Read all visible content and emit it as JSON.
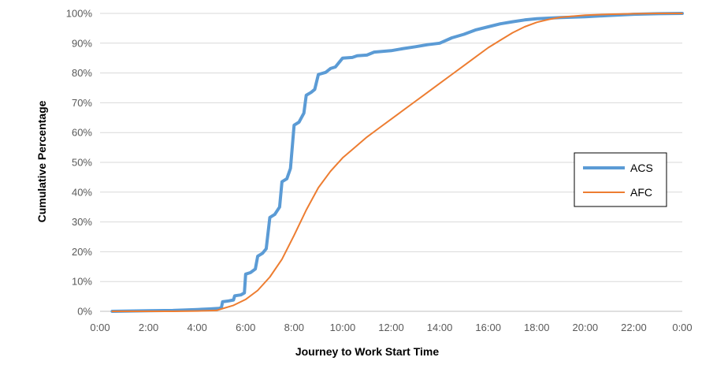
{
  "chart_data": {
    "type": "line",
    "xlabel": "Journey to Work Start Time",
    "ylabel": "Cumulative Percentage",
    "x_ticks": [
      "0:00",
      "2:00",
      "4:00",
      "6:00",
      "8:00",
      "10:00",
      "12:00",
      "14:00",
      "16:00",
      "18:00",
      "20:00",
      "22:00",
      "0:00"
    ],
    "x_range_hours": [
      0,
      24
    ],
    "y_ticks": [
      "0%",
      "10%",
      "20%",
      "30%",
      "40%",
      "50%",
      "60%",
      "70%",
      "80%",
      "90%",
      "100%"
    ],
    "ylim": [
      0,
      100
    ],
    "grid": "horizontal",
    "legend_position": "right",
    "series": [
      {
        "name": "ACS",
        "color": "#5B9BD5",
        "points": [
          [
            0.5,
            0
          ],
          [
            2,
            0.2
          ],
          [
            3,
            0.3
          ],
          [
            4,
            0.6
          ],
          [
            4.5,
            0.8
          ],
          [
            4.9,
            1.0
          ],
          [
            5.0,
            1.2
          ],
          [
            5.05,
            3.2
          ],
          [
            5.3,
            3.5
          ],
          [
            5.5,
            3.8
          ],
          [
            5.55,
            5.2
          ],
          [
            5.8,
            5.5
          ],
          [
            5.95,
            6.2
          ],
          [
            6.0,
            12.5
          ],
          [
            6.2,
            13.0
          ],
          [
            6.4,
            14.2
          ],
          [
            6.5,
            18.5
          ],
          [
            6.7,
            19.5
          ],
          [
            6.85,
            21.0
          ],
          [
            7.0,
            31.5
          ],
          [
            7.2,
            32.5
          ],
          [
            7.4,
            35.0
          ],
          [
            7.5,
            43.5
          ],
          [
            7.7,
            44.5
          ],
          [
            7.85,
            48.0
          ],
          [
            8.0,
            62.5
          ],
          [
            8.2,
            63.5
          ],
          [
            8.4,
            66.5
          ],
          [
            8.5,
            72.5
          ],
          [
            8.7,
            73.5
          ],
          [
            8.85,
            74.5
          ],
          [
            9.0,
            79.5
          ],
          [
            9.3,
            80.2
          ],
          [
            9.5,
            81.5
          ],
          [
            9.7,
            82.0
          ],
          [
            10.0,
            85.0
          ],
          [
            10.4,
            85.2
          ],
          [
            10.6,
            85.8
          ],
          [
            11.0,
            86.0
          ],
          [
            11.3,
            87.0
          ],
          [
            12.0,
            87.5
          ],
          [
            12.5,
            88.2
          ],
          [
            13.0,
            88.8
          ],
          [
            13.5,
            89.5
          ],
          [
            14.0,
            90.0
          ],
          [
            14.5,
            91.8
          ],
          [
            15.0,
            93.0
          ],
          [
            15.5,
            94.5
          ],
          [
            16.0,
            95.5
          ],
          [
            16.5,
            96.5
          ],
          [
            17.0,
            97.2
          ],
          [
            17.5,
            97.8
          ],
          [
            18.0,
            98.2
          ],
          [
            19.0,
            98.6
          ],
          [
            20.0,
            98.9
          ],
          [
            21.0,
            99.3
          ],
          [
            22.0,
            99.7
          ],
          [
            23.0,
            99.9
          ],
          [
            24.0,
            100
          ]
        ]
      },
      {
        "name": "AFC",
        "color": "#ED7D31",
        "points": [
          [
            0.5,
            0
          ],
          [
            2,
            0
          ],
          [
            3,
            0
          ],
          [
            4,
            0.1
          ],
          [
            4.8,
            0.3
          ],
          [
            5.0,
            0.8
          ],
          [
            5.5,
            2.0
          ],
          [
            6.0,
            4.0
          ],
          [
            6.5,
            7.0
          ],
          [
            7.0,
            11.5
          ],
          [
            7.5,
            17.5
          ],
          [
            8.0,
            25.5
          ],
          [
            8.5,
            34.0
          ],
          [
            9.0,
            41.5
          ],
          [
            9.5,
            47.0
          ],
          [
            10.0,
            51.5
          ],
          [
            10.5,
            55.0
          ],
          [
            11.0,
            58.5
          ],
          [
            11.5,
            61.5
          ],
          [
            12.0,
            64.5
          ],
          [
            12.5,
            67.5
          ],
          [
            13.0,
            70.5
          ],
          [
            13.5,
            73.5
          ],
          [
            14.0,
            76.5
          ],
          [
            14.5,
            79.5
          ],
          [
            15.0,
            82.5
          ],
          [
            15.5,
            85.5
          ],
          [
            16.0,
            88.5
          ],
          [
            16.5,
            91.0
          ],
          [
            17.0,
            93.5
          ],
          [
            17.5,
            95.5
          ],
          [
            18.0,
            97.0
          ],
          [
            18.5,
            98.0
          ],
          [
            19.0,
            98.7
          ],
          [
            20.0,
            99.4
          ],
          [
            21.0,
            99.7
          ],
          [
            22.0,
            99.9
          ],
          [
            23.0,
            100
          ],
          [
            24.0,
            100
          ]
        ]
      }
    ]
  }
}
